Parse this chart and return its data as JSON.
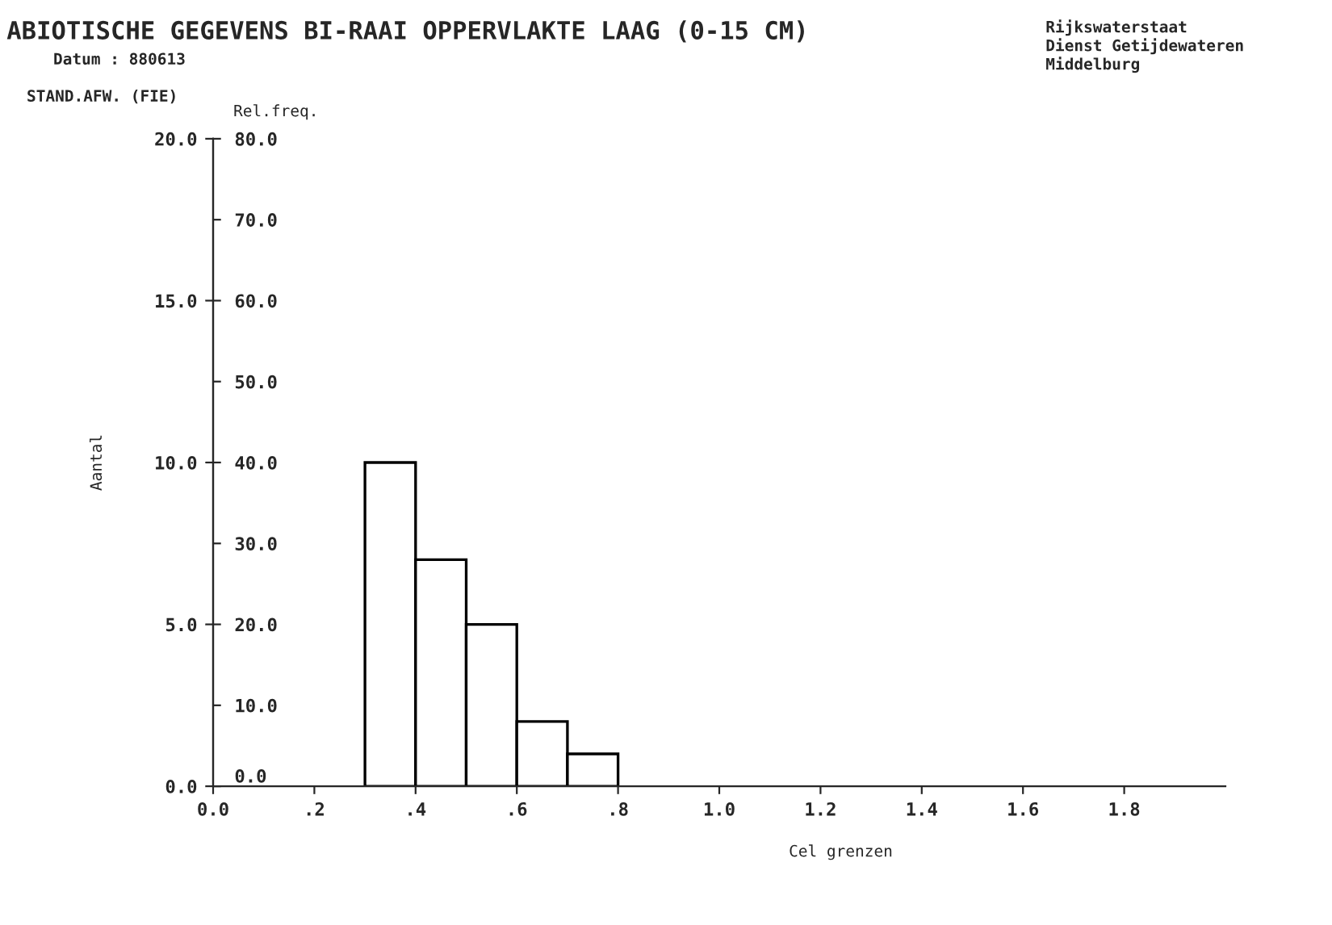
{
  "chart_data": {
    "type": "histogram",
    "title": "ABIOTISCHE GEGEVENS BI-RAAI OPPERVLAKTE LAAG (0-15 CM)",
    "subtitle": "Datum : 880613",
    "annotations": [
      "Rijkswaterstaat\nDienst Getijdewateren\nMiddelburg",
      "STAND.AFW. (FIE)"
    ],
    "xlabel": "Cel grenzen",
    "ylabel": "Aantal",
    "y2label": "Rel.freq.",
    "bins": [
      0.3,
      0.4,
      0.5,
      0.6,
      0.7,
      0.8
    ],
    "values": [
      10,
      7,
      5,
      2,
      1
    ],
    "color": "#ffffff",
    "xlim": [
      0,
      2.0
    ],
    "xticks": [
      {
        "value": 0,
        "label": "0.0"
      },
      {
        "value": 0.2,
        "label": ".2"
      },
      {
        "value": 0.4,
        "label": ".4"
      },
      {
        "value": 0.6,
        "label": ".6"
      },
      {
        "value": 0.8,
        "label": ".8"
      },
      {
        "value": 1.0,
        "label": "1.0"
      },
      {
        "value": 1.2,
        "label": "1.2"
      },
      {
        "value": 1.4,
        "label": "1.4"
      },
      {
        "value": 1.6,
        "label": "1.6"
      },
      {
        "value": 1.8,
        "label": "1.8"
      }
    ],
    "ylim": [
      0,
      20
    ],
    "yticks": [
      {
        "value": 0,
        "label": "0.0"
      },
      {
        "value": 5,
        "label": "5.0"
      },
      {
        "value": 10,
        "label": "10.0"
      },
      {
        "value": 15,
        "label": "15.0"
      },
      {
        "value": 20,
        "label": "20.0"
      }
    ],
    "y2lim": [
      0,
      80
    ],
    "y2ticks": [
      {
        "value": 0,
        "label": "0.0"
      },
      {
        "value": 10,
        "label": "10.0"
      },
      {
        "value": 20,
        "label": "20.0"
      },
      {
        "value": 30,
        "label": "30.0"
      },
      {
        "value": 40,
        "label": "40.0"
      },
      {
        "value": 50,
        "label": "50.0"
      },
      {
        "value": 60,
        "label": "60.0"
      },
      {
        "value": 70,
        "label": "70.0"
      },
      {
        "value": 80,
        "label": "80.0"
      }
    ],
    "grid": false,
    "legend": false
  }
}
